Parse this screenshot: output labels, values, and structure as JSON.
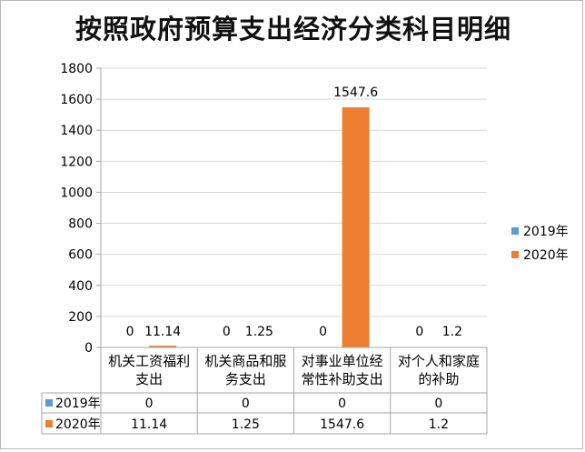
{
  "chart_data": {
    "type": "bar",
    "title": "按照政府预算支出经济分类科目明细",
    "categories": [
      [
        "机关工资福利",
        "支出"
      ],
      [
        "机关商品和服",
        "务支出"
      ],
      [
        "对事业单位经",
        "常性补助支出"
      ],
      [
        "对个人和家庭",
        "的补助"
      ]
    ],
    "series": [
      {
        "name": "2019年",
        "color": "#5b9bd5",
        "values": [
          0,
          0,
          0,
          0
        ],
        "labels": [
          "0",
          "0",
          "0",
          "0"
        ]
      },
      {
        "name": "2020年",
        "color": "#ed7d31",
        "values": [
          11.14,
          1.25,
          1547.6,
          1.2
        ],
        "labels": [
          "11.14",
          "1.25",
          "1547.6",
          "1.2"
        ]
      }
    ],
    "yticks": [
      "0",
      "200",
      "400",
      "600",
      "800",
      "1000",
      "1200",
      "1400",
      "1600",
      "1800"
    ],
    "ylim": [
      0,
      1800
    ],
    "grid": true,
    "legend": "right",
    "data_table": true
  }
}
